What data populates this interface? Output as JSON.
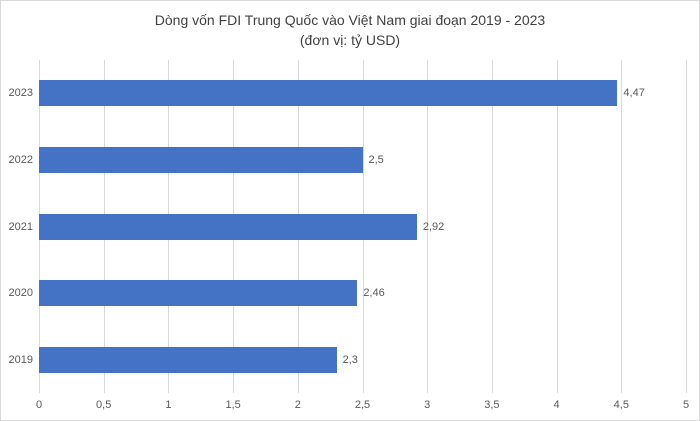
{
  "chart": {
    "title": "Dòng vốn FDI Trung Quốc vào Việt Nam giai đoạn 2019 - 2023",
    "subtitle": "(đơn vị: tỷ USD)"
  },
  "chart_data": {
    "type": "bar",
    "orientation": "horizontal",
    "title": "Dòng vốn FDI Trung Quốc vào Việt Nam giai đoạn 2019 - 2023",
    "subtitle": "(đơn vị: tỷ USD)",
    "categories": [
      "2023",
      "2022",
      "2021",
      "2020",
      "2019"
    ],
    "values": [
      4.47,
      2.5,
      2.92,
      2.46,
      2.3
    ],
    "value_labels": [
      "4,47",
      "2,5",
      "2,92",
      "2,46",
      "2,3"
    ],
    "xlabel": "",
    "ylabel": "",
    "xlim": [
      0,
      5
    ],
    "x_ticks": [
      0,
      0.5,
      1,
      1.5,
      2,
      2.5,
      3,
      3.5,
      4,
      4.5,
      5
    ],
    "x_tick_labels": [
      "0",
      "0,5",
      "1",
      "1,5",
      "2",
      "2,5",
      "3",
      "3,5",
      "4",
      "4,5",
      "5"
    ],
    "grid": true,
    "legend": false,
    "colors": {
      "bar": "#4472C4",
      "gridline": "#D9D9D9",
      "axis_text": "#595959",
      "title_text": "#404040"
    }
  }
}
